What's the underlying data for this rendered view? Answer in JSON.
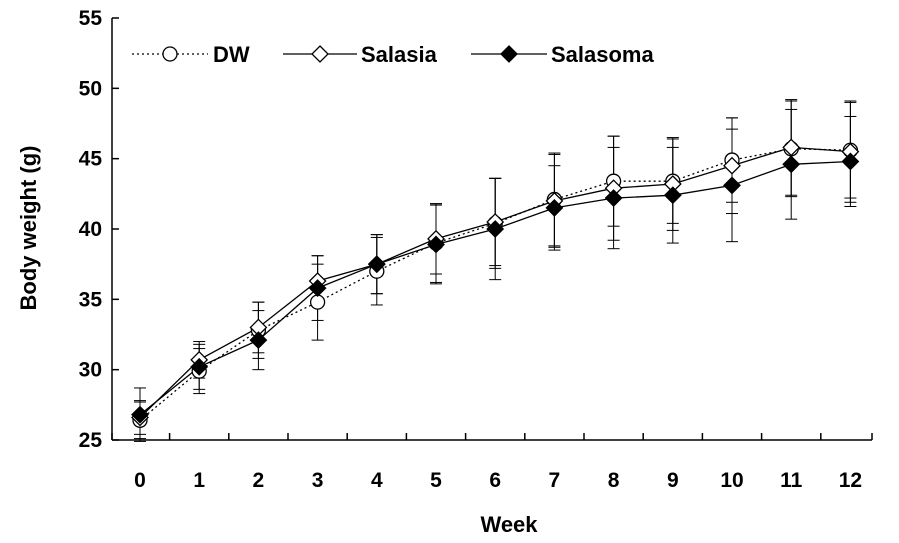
{
  "chart_data": {
    "type": "line",
    "xlabel": "Week",
    "ylabel": "Body weight (g)",
    "x": [
      0,
      1,
      2,
      3,
      4,
      5,
      6,
      7,
      8,
      9,
      10,
      11,
      12
    ],
    "xlim": [
      0,
      12
    ],
    "ylim": [
      25,
      55
    ],
    "yticks": [
      25,
      30,
      35,
      40,
      45,
      50,
      55
    ],
    "grid": false,
    "legend_position": "top-left",
    "series": [
      {
        "name": "DW",
        "marker": "open-circle",
        "line_style": "dotted",
        "color": "#000000",
        "values": [
          26.4,
          29.9,
          32.8,
          34.8,
          37.0,
          39.0,
          40.4,
          42.1,
          43.4,
          43.4,
          44.9,
          45.7,
          45.6
        ],
        "errors": [
          1.3,
          1.6,
          2.0,
          2.7,
          2.4,
          2.8,
          3.2,
          3.3,
          3.2,
          3.0,
          3.0,
          3.4,
          3.4
        ]
      },
      {
        "name": "Salasia",
        "marker": "open-diamond",
        "line_style": "solid",
        "color": "#000000",
        "values": [
          26.6,
          30.7,
          33.0,
          36.3,
          37.5,
          39.3,
          40.5,
          42.0,
          42.9,
          43.2,
          44.5,
          45.8,
          45.5
        ],
        "errors": [
          1.2,
          1.3,
          1.8,
          1.8,
          2.1,
          2.5,
          3.1,
          3.3,
          3.7,
          3.3,
          3.4,
          3.4,
          3.6
        ]
      },
      {
        "name": "Salasoma",
        "marker": "filled-diamond",
        "line_style": "solid",
        "color": "#000000",
        "values": [
          26.8,
          30.2,
          32.1,
          35.8,
          37.5,
          38.9,
          40.0,
          41.5,
          42.2,
          42.4,
          43.1,
          44.6,
          44.8
        ],
        "errors": [
          1.9,
          1.6,
          2.1,
          2.3,
          2.1,
          2.8,
          3.6,
          3.0,
          3.6,
          3.4,
          4.0,
          3.9,
          3.2
        ]
      }
    ]
  }
}
